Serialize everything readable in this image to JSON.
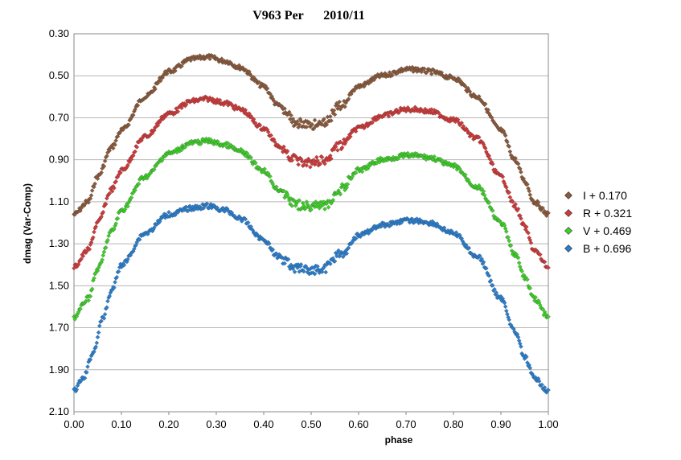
{
  "chart_data": {
    "type": "scatter",
    "title_star": "V963 Per",
    "title_date": "2010/11",
    "xlabel": "phase",
    "ylabel": "dmag (Var-Comp)",
    "xlim": [
      0.0,
      1.0
    ],
    "ylim": [
      0.3,
      2.1
    ],
    "y_inverted": true,
    "grid": "horizontal",
    "legend_position": "right",
    "x_ticks": [
      "0.00",
      "0.10",
      "0.20",
      "0.30",
      "0.40",
      "0.50",
      "0.60",
      "0.70",
      "0.80",
      "0.90",
      "1.00"
    ],
    "y_ticks": [
      "0.30",
      "0.50",
      "0.70",
      "0.90",
      "1.10",
      "1.30",
      "1.50",
      "1.70",
      "1.90",
      "2.10"
    ],
    "series": [
      {
        "name": "I + 0.170",
        "color": "#8b5a3c",
        "x": [
          0.0,
          0.03,
          0.05,
          0.08,
          0.1,
          0.15,
          0.2,
          0.25,
          0.28,
          0.32,
          0.35,
          0.4,
          0.43,
          0.47,
          0.5,
          0.53,
          0.56,
          0.6,
          0.65,
          0.7,
          0.72,
          0.75,
          0.8,
          0.85,
          0.9,
          0.93,
          0.95,
          0.97,
          1.0
        ],
        "y": [
          1.16,
          1.1,
          0.98,
          0.84,
          0.76,
          0.6,
          0.48,
          0.42,
          0.41,
          0.43,
          0.46,
          0.55,
          0.64,
          0.72,
          0.73,
          0.72,
          0.64,
          0.55,
          0.5,
          0.47,
          0.47,
          0.48,
          0.51,
          0.6,
          0.76,
          0.9,
          1.0,
          1.1,
          1.16
        ]
      },
      {
        "name": "R + 0.321",
        "color": "#d03a3a",
        "x": [
          0.0,
          0.03,
          0.05,
          0.08,
          0.1,
          0.15,
          0.2,
          0.25,
          0.28,
          0.32,
          0.35,
          0.4,
          0.43,
          0.47,
          0.5,
          0.53,
          0.56,
          0.6,
          0.65,
          0.7,
          0.72,
          0.75,
          0.8,
          0.85,
          0.9,
          0.93,
          0.95,
          0.97,
          1.0
        ],
        "y": [
          1.41,
          1.33,
          1.2,
          1.04,
          0.95,
          0.79,
          0.68,
          0.62,
          0.61,
          0.63,
          0.66,
          0.75,
          0.83,
          0.9,
          0.91,
          0.9,
          0.83,
          0.75,
          0.69,
          0.66,
          0.66,
          0.67,
          0.71,
          0.8,
          0.98,
          1.12,
          1.22,
          1.33,
          1.41
        ]
      },
      {
        "name": "V + 0.469",
        "color": "#3fcf2a",
        "x": [
          0.0,
          0.03,
          0.05,
          0.08,
          0.1,
          0.15,
          0.2,
          0.25,
          0.28,
          0.32,
          0.35,
          0.4,
          0.43,
          0.47,
          0.5,
          0.53,
          0.56,
          0.6,
          0.65,
          0.7,
          0.72,
          0.75,
          0.8,
          0.85,
          0.9,
          0.93,
          0.95,
          0.97,
          1.0
        ],
        "y": [
          1.65,
          1.56,
          1.42,
          1.24,
          1.14,
          0.98,
          0.87,
          0.82,
          0.81,
          0.83,
          0.86,
          0.95,
          1.04,
          1.11,
          1.12,
          1.11,
          1.04,
          0.95,
          0.9,
          0.88,
          0.88,
          0.89,
          0.93,
          1.03,
          1.2,
          1.35,
          1.46,
          1.56,
          1.65
        ]
      },
      {
        "name": "B + 0.696",
        "color": "#2a7fcf",
        "x": [
          0.0,
          0.02,
          0.04,
          0.06,
          0.08,
          0.1,
          0.15,
          0.2,
          0.25,
          0.28,
          0.32,
          0.35,
          0.4,
          0.43,
          0.47,
          0.5,
          0.53,
          0.56,
          0.6,
          0.65,
          0.7,
          0.72,
          0.75,
          0.8,
          0.85,
          0.9,
          0.93,
          0.95,
          0.97,
          1.0
        ],
        "y": [
          2.0,
          1.94,
          1.82,
          1.66,
          1.52,
          1.4,
          1.25,
          1.16,
          1.13,
          1.12,
          1.14,
          1.18,
          1.28,
          1.36,
          1.41,
          1.42,
          1.41,
          1.35,
          1.26,
          1.21,
          1.19,
          1.19,
          1.2,
          1.25,
          1.36,
          1.56,
          1.72,
          1.84,
          1.94,
          2.0
        ]
      }
    ]
  }
}
